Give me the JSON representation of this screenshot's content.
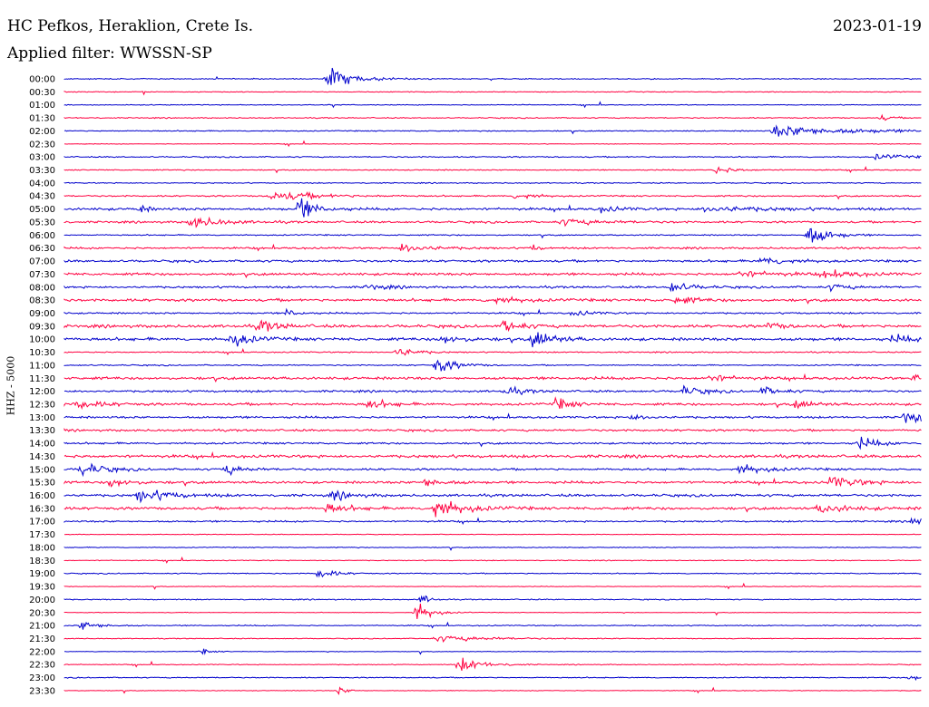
{
  "header": {
    "station": "HC Pefkos, Heraklion, Crete Is.",
    "date": "2023-01-19",
    "filter": "Applied filter: WWSSN-SP"
  },
  "side_label": "HHZ - 5000",
  "colors": {
    "blue": "#0000cc",
    "red": "#ff0040"
  },
  "chart_data": {
    "type": "line",
    "title": "HC Pefkos, Heraklion, Crete Is.",
    "ylabel": "HHZ - 5000",
    "row_labels": [
      "00:00",
      "00:30",
      "01:00",
      "01:30",
      "02:00",
      "02:30",
      "03:00",
      "03:30",
      "04:00",
      "04:30",
      "05:00",
      "05:30",
      "06:00",
      "06:30",
      "07:00",
      "07:30",
      "08:00",
      "08:30",
      "09:00",
      "09:30",
      "10:00",
      "10:30",
      "11:00",
      "11:30",
      "12:00",
      "12:30",
      "13:00",
      "13:30",
      "14:00",
      "14:30",
      "15:00",
      "15:30",
      "16:00",
      "16:30",
      "17:00",
      "17:30",
      "18:00",
      "18:30",
      "19:00",
      "19:30",
      "20:00",
      "20:30",
      "21:00",
      "21:30",
      "22:00",
      "22:30",
      "23:00",
      "23:30"
    ],
    "row_colors": [
      "blue",
      "red"
    ],
    "row_minutes": 30,
    "noise": [
      0.5,
      0.4,
      0.4,
      0.5,
      0.5,
      0.3,
      0.6,
      0.5,
      0.5,
      0.7,
      1.2,
      1.0,
      0.6,
      0.9,
      1.1,
      1.2,
      1.0,
      1.3,
      0.8,
      1.4,
      1.4,
      0.6,
      0.6,
      1.3,
      1.0,
      1.2,
      1.0,
      1.0,
      0.9,
      1.4,
      1.0,
      1.2,
      1.2,
      1.3,
      0.8,
      0.3,
      0.4,
      0.4,
      0.5,
      0.3,
      0.5,
      0.3,
      0.5,
      0.4,
      0.3,
      0.4,
      0.5,
      0.3
    ],
    "events": [
      {
        "row": 0,
        "minute": 9.2,
        "amp": 9,
        "dur": 1.5
      },
      {
        "row": 3,
        "minute": 28.6,
        "amp": 3,
        "dur": 0.5
      },
      {
        "row": 4,
        "minute": 24.8,
        "amp": 6,
        "dur": 4
      },
      {
        "row": 6,
        "minute": 28.4,
        "amp": 3,
        "dur": 1.5
      },
      {
        "row": 7,
        "minute": 22.8,
        "amp": 4,
        "dur": 1
      },
      {
        "row": 9,
        "minute": 7.2,
        "amp": 5,
        "dur": 2.5
      },
      {
        "row": 9,
        "minute": 15.8,
        "amp": 4,
        "dur": 1
      },
      {
        "row": 10,
        "minute": 2.6,
        "amp": 4,
        "dur": 0.5
      },
      {
        "row": 10,
        "minute": 8.2,
        "amp": 13,
        "dur": 0.8
      },
      {
        "row": 10,
        "minute": 18.8,
        "amp": 3,
        "dur": 1
      },
      {
        "row": 10,
        "minute": 22.4,
        "amp": 3,
        "dur": 3
      },
      {
        "row": 11,
        "minute": 4.4,
        "amp": 6,
        "dur": 1.5
      },
      {
        "row": 11,
        "minute": 17.4,
        "amp": 3,
        "dur": 2
      },
      {
        "row": 12,
        "minute": 26.0,
        "amp": 13,
        "dur": 1
      },
      {
        "row": 13,
        "minute": 11.8,
        "amp": 5,
        "dur": 1.5
      },
      {
        "row": 13,
        "minute": 16.4,
        "amp": 4,
        "dur": 0.3
      },
      {
        "row": 14,
        "minute": 24.4,
        "amp": 4,
        "dur": 1.5
      },
      {
        "row": 15,
        "minute": 23.6,
        "amp": 3,
        "dur": 2
      },
      {
        "row": 15,
        "minute": 26.6,
        "amp": 3,
        "dur": 2
      },
      {
        "row": 16,
        "minute": 10.6,
        "amp": 3,
        "dur": 1
      },
      {
        "row": 16,
        "minute": 21.2,
        "amp": 6,
        "dur": 1
      },
      {
        "row": 16,
        "minute": 26.8,
        "amp": 3,
        "dur": 1
      },
      {
        "row": 17,
        "minute": 14.8,
        "amp": 4,
        "dur": 1.5
      },
      {
        "row": 17,
        "minute": 21.4,
        "amp": 4,
        "dur": 1
      },
      {
        "row": 18,
        "minute": 7.8,
        "amp": 5,
        "dur": 0.5
      },
      {
        "row": 18,
        "minute": 17.8,
        "amp": 3,
        "dur": 1
      },
      {
        "row": 19,
        "minute": 6.8,
        "amp": 6,
        "dur": 1
      },
      {
        "row": 19,
        "minute": 15.4,
        "amp": 7,
        "dur": 0.8
      },
      {
        "row": 19,
        "minute": 24.6,
        "amp": 3,
        "dur": 1
      },
      {
        "row": 20,
        "minute": 5.8,
        "amp": 9,
        "dur": 1
      },
      {
        "row": 20,
        "minute": 13.2,
        "amp": 5,
        "dur": 1
      },
      {
        "row": 20,
        "minute": 16.4,
        "amp": 10,
        "dur": 1
      },
      {
        "row": 20,
        "minute": 29.0,
        "amp": 4,
        "dur": 1
      },
      {
        "row": 21,
        "minute": 11.6,
        "amp": 6,
        "dur": 1
      },
      {
        "row": 22,
        "minute": 13.0,
        "amp": 9,
        "dur": 1
      },
      {
        "row": 23,
        "minute": 22.6,
        "amp": 4,
        "dur": 1
      },
      {
        "row": 23,
        "minute": 29.8,
        "amp": 5,
        "dur": 1
      },
      {
        "row": 24,
        "minute": 15.4,
        "amp": 4,
        "dur": 1
      },
      {
        "row": 24,
        "minute": 21.6,
        "amp": 5,
        "dur": 1
      },
      {
        "row": 24,
        "minute": 24.4,
        "amp": 4,
        "dur": 1
      },
      {
        "row": 25,
        "minute": 0.4,
        "amp": 5,
        "dur": 1.2
      },
      {
        "row": 25,
        "minute": 10.6,
        "amp": 5,
        "dur": 1
      },
      {
        "row": 25,
        "minute": 17.2,
        "amp": 6,
        "dur": 0.8
      },
      {
        "row": 25,
        "minute": 25.6,
        "amp": 4,
        "dur": 1
      },
      {
        "row": 26,
        "minute": 19.8,
        "amp": 3,
        "dur": 1
      },
      {
        "row": 26,
        "minute": 29.4,
        "amp": 7,
        "dur": 1
      },
      {
        "row": 28,
        "minute": 27.8,
        "amp": 6,
        "dur": 1
      },
      {
        "row": 30,
        "minute": 0.6,
        "amp": 8,
        "dur": 1
      },
      {
        "row": 30,
        "minute": 5.6,
        "amp": 5,
        "dur": 1
      },
      {
        "row": 30,
        "minute": 23.6,
        "amp": 5,
        "dur": 1.5
      },
      {
        "row": 31,
        "minute": 1.6,
        "amp": 5,
        "dur": 1
      },
      {
        "row": 31,
        "minute": 12.6,
        "amp": 5,
        "dur": 1
      },
      {
        "row": 31,
        "minute": 26.8,
        "amp": 6,
        "dur": 1.5
      },
      {
        "row": 32,
        "minute": 2.6,
        "amp": 7,
        "dur": 1.5
      },
      {
        "row": 32,
        "minute": 9.4,
        "amp": 4,
        "dur": 1
      },
      {
        "row": 33,
        "minute": 9.2,
        "amp": 5,
        "dur": 1
      },
      {
        "row": 33,
        "minute": 12.8,
        "amp": 12,
        "dur": 1.5
      },
      {
        "row": 33,
        "minute": 26.4,
        "amp": 5,
        "dur": 1.5
      },
      {
        "row": 34,
        "minute": 29.7,
        "amp": 6,
        "dur": 1
      },
      {
        "row": 38,
        "minute": 8.9,
        "amp": 6,
        "dur": 0.8
      },
      {
        "row": 40,
        "minute": 12.5,
        "amp": 6,
        "dur": 0.4
      },
      {
        "row": 41,
        "minute": 12.3,
        "amp": 11,
        "dur": 0.8
      },
      {
        "row": 42,
        "minute": 0.6,
        "amp": 5,
        "dur": 1
      },
      {
        "row": 43,
        "minute": 13.0,
        "amp": 3,
        "dur": 3
      },
      {
        "row": 44,
        "minute": 4.8,
        "amp": 3,
        "dur": 0.5
      },
      {
        "row": 45,
        "minute": 13.8,
        "amp": 8,
        "dur": 1.2
      },
      {
        "row": 46,
        "minute": 29.6,
        "amp": 3,
        "dur": 1
      },
      {
        "row": 47,
        "minute": 9.6,
        "amp": 4,
        "dur": 0.5
      }
    ]
  }
}
